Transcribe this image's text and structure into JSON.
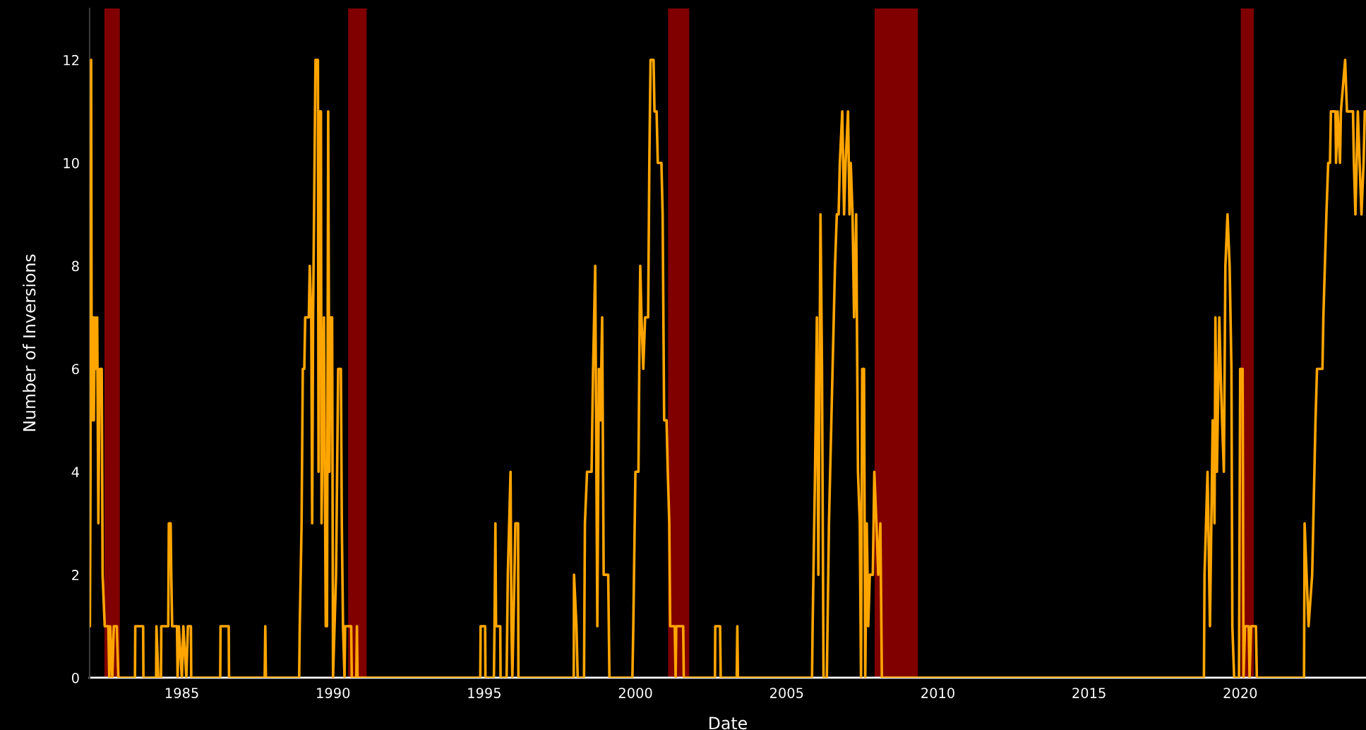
{
  "chart_data": {
    "type": "line",
    "xlabel": "Date",
    "ylabel": "Number of Inversions",
    "xlim": [
      1981.95,
      2024.16
    ],
    "xticks": [
      1985,
      1990,
      1995,
      2000,
      2005,
      2010,
      2015,
      2020
    ],
    "ylim": [
      0,
      13
    ],
    "yticks": [
      0,
      2,
      4,
      6,
      8,
      10,
      12
    ],
    "grid": false,
    "legend": false,
    "line_style": "solid",
    "bands": [
      {
        "axis": "x",
        "from": 1982.44,
        "to": 1982.95,
        "color": "#800000"
      },
      {
        "axis": "x",
        "from": 1990.5,
        "to": 1991.11,
        "color": "#800000"
      },
      {
        "axis": "x",
        "from": 2001.08,
        "to": 2001.78,
        "color": "#800000"
      },
      {
        "axis": "x",
        "from": 2007.91,
        "to": 2009.34,
        "color": "#800000"
      },
      {
        "axis": "x",
        "from": 2020.02,
        "to": 2020.45,
        "color": "#800000"
      }
    ],
    "series": [
      {
        "color": "#ffa500",
        "x": [
          1981.96,
          1981.98,
          1982.0,
          1982.02,
          1982.06,
          1982.09,
          1982.12,
          1982.16,
          1982.2,
          1982.24,
          1982.28,
          1982.35,
          1982.38,
          1982.45,
          1982.57,
          1982.6,
          1982.63,
          1982.7,
          1982.75,
          1982.85,
          1982.9,
          1983.45,
          1983.46,
          1983.72,
          1983.73,
          1984.15,
          1984.16,
          1984.22,
          1984.31,
          1984.32,
          1984.55,
          1984.57,
          1984.63,
          1984.65,
          1984.68,
          1984.84,
          1984.86,
          1984.9,
          1985.0,
          1985.05,
          1985.15,
          1985.2,
          1985.3,
          1985.31,
          1986.27,
          1986.28,
          1986.55,
          1986.56,
          1987.74,
          1987.76,
          1987.78,
          1988.88,
          1988.9,
          1988.96,
          1989.0,
          1989.05,
          1989.08,
          1989.2,
          1989.23,
          1989.28,
          1989.31,
          1989.34,
          1989.42,
          1989.5,
          1989.52,
          1989.55,
          1989.6,
          1989.62,
          1989.7,
          1989.76,
          1989.8,
          1989.84,
          1989.88,
          1989.92,
          1989.97,
          1990.0,
          1990.1,
          1990.17,
          1990.26,
          1990.29,
          1990.33,
          1990.38,
          1990.4,
          1990.6,
          1990.62,
          1990.77,
          1990.79,
          1990.81,
          1994.87,
          1994.88,
          1995.03,
          1995.04,
          1995.32,
          1995.34,
          1995.37,
          1995.39,
          1995.53,
          1995.54,
          1995.74,
          1995.78,
          1995.87,
          1995.9,
          1995.93,
          1996.0,
          1996.03,
          1996.12,
          1996.13,
          1997.96,
          1997.97,
          1998.05,
          1998.09,
          1998.3,
          1998.33,
          1998.4,
          1998.55,
          1998.6,
          1998.67,
          1998.74,
          1998.79,
          1998.84,
          1998.9,
          1998.95,
          1999.1,
          1999.14,
          1999.9,
          1999.93,
          2000.0,
          2000.1,
          2000.14,
          2000.16,
          2000.2,
          2000.26,
          2000.32,
          2000.42,
          2000.46,
          2000.5,
          2000.6,
          2000.63,
          2000.7,
          2000.74,
          2000.86,
          2000.9,
          2000.95,
          2001.03,
          2001.07,
          2001.12,
          2001.15,
          2001.3,
          2001.33,
          2001.35,
          2001.5,
          2001.58,
          2001.6,
          2002.63,
          2002.64,
          2002.8,
          2002.82,
          2003.35,
          2003.37,
          2003.39,
          2005.84,
          2005.86,
          2005.94,
          2006.0,
          2006.05,
          2006.12,
          2006.17,
          2006.22,
          2006.33,
          2006.4,
          2006.48,
          2006.56,
          2006.6,
          2006.66,
          2006.72,
          2006.76,
          2006.84,
          2006.9,
          2006.95,
          2007.03,
          2007.08,
          2007.12,
          2007.18,
          2007.23,
          2007.3,
          2007.36,
          2007.42,
          2007.46,
          2007.5,
          2007.56,
          2007.6,
          2007.65,
          2007.7,
          2007.75,
          2007.85,
          2007.9,
          2007.97,
          2008.03,
          2008.1,
          2008.15,
          2018.8,
          2018.82,
          2018.92,
          2019.0,
          2019.09,
          2019.15,
          2019.18,
          2019.23,
          2019.31,
          2019.35,
          2019.4,
          2019.46,
          2019.51,
          2019.58,
          2019.65,
          2019.71,
          2019.74,
          2019.8,
          2019.96,
          2020.0,
          2020.08,
          2020.11,
          2020.16,
          2020.28,
          2020.31,
          2020.36,
          2020.52,
          2020.55,
          2022.11,
          2022.13,
          2022.26,
          2022.38,
          2022.49,
          2022.54,
          2022.72,
          2022.75,
          2022.8,
          2022.85,
          2022.91,
          2022.97,
          2023.0,
          2023.15,
          2023.17,
          2023.22,
          2023.3,
          2023.33,
          2023.47,
          2023.53,
          2023.73,
          2023.76,
          2023.81,
          2023.89,
          2024.01,
          2024.08,
          2024.12,
          2024.15
        ],
        "values": [
          1,
          4,
          12,
          5,
          7,
          5,
          7,
          6,
          7,
          3,
          6,
          6,
          2,
          1,
          1,
          0,
          1,
          0,
          1,
          1,
          0,
          0,
          1,
          1,
          0,
          0,
          1,
          0,
          0,
          1,
          1,
          3,
          3,
          2,
          1,
          1,
          0,
          1,
          0,
          1,
          0,
          1,
          1,
          0,
          0,
          1,
          1,
          0,
          0,
          1,
          0,
          0,
          1,
          3,
          6,
          6,
          7,
          7,
          8,
          7,
          3,
          7,
          12,
          12,
          4,
          11,
          11,
          3,
          7,
          1,
          1,
          11,
          4,
          7,
          7,
          0,
          2,
          6,
          6,
          3,
          1,
          0,
          1,
          1,
          0,
          0,
          1,
          0,
          0,
          1,
          1,
          0,
          0,
          1,
          3,
          1,
          1,
          0,
          0,
          2,
          4,
          1,
          0,
          2,
          3,
          3,
          0,
          0,
          2,
          1,
          0,
          0,
          3,
          4,
          4,
          6,
          8,
          1,
          6,
          5,
          7,
          2,
          2,
          0,
          0,
          1,
          4,
          4,
          7,
          8,
          7,
          6,
          7,
          7,
          10,
          12,
          12,
          11,
          11,
          10,
          10,
          9,
          5,
          5,
          4,
          3,
          1,
          1,
          0,
          1,
          1,
          1,
          0,
          0,
          1,
          1,
          0,
          0,
          1,
          0,
          0,
          1,
          4,
          7,
          2,
          9,
          6,
          0,
          0,
          3,
          5,
          7,
          8,
          9,
          9,
          10,
          11,
          9,
          10,
          11,
          9,
          10,
          9,
          7,
          9,
          4,
          3,
          0,
          6,
          6,
          0,
          3,
          1,
          2,
          2,
          4,
          3,
          2,
          3,
          0,
          0,
          2,
          4,
          1,
          5,
          3,
          7,
          4,
          7,
          6,
          5,
          4,
          8,
          9,
          8,
          6,
          1,
          0,
          0,
          6,
          6,
          0,
          1,
          1,
          0,
          1,
          1,
          0,
          0,
          3,
          1,
          2,
          5,
          6,
          6,
          7,
          8,
          9,
          10,
          10,
          11,
          11,
          10,
          11,
          10,
          11,
          12,
          11,
          11,
          10,
          9,
          11,
          9,
          10,
          11,
          11
        ]
      }
    ]
  }
}
